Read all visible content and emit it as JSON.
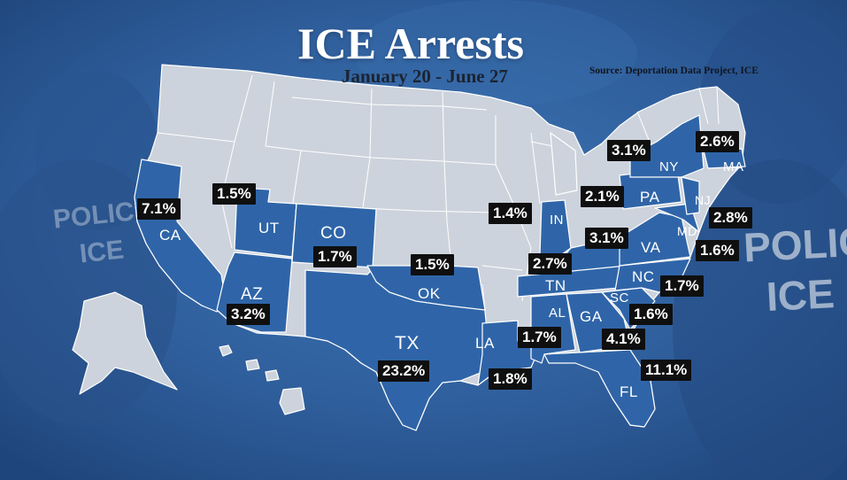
{
  "title": "ICE Arrests",
  "subtitle": "January 20 - June 27",
  "source": "Source: Deportation Data Project, ICE",
  "colors": {
    "highlight_state": "#2f65a8",
    "other_state": "#cdd3dc",
    "background": "#2f5f9c",
    "label_box": "#0f0f10"
  },
  "background_text": {
    "left_patch_1": "POLICE",
    "left_patch_2": "ICE",
    "right_patch_1": "POLICE",
    "right_patch_2": "ICE"
  },
  "states": [
    {
      "abbr": "CA",
      "share": "7.1%"
    },
    {
      "abbr": "UT",
      "share": "1.5%"
    },
    {
      "abbr": "AZ",
      "share": "3.2%"
    },
    {
      "abbr": "CO",
      "share": "1.7%"
    },
    {
      "abbr": "OK",
      "share": "1.5%"
    },
    {
      "abbr": "TX",
      "share": "23.2%"
    },
    {
      "abbr": "LA",
      "share": "1.8%"
    },
    {
      "abbr": "IN",
      "share": "1.4%"
    },
    {
      "abbr": "TN",
      "share": "2.7%"
    },
    {
      "abbr": "AL",
      "share": "1.7%"
    },
    {
      "abbr": "GA",
      "share": "4.1%"
    },
    {
      "abbr": "FL",
      "share": "11.1%"
    },
    {
      "abbr": "SC",
      "share": "1.6%"
    },
    {
      "abbr": "NC",
      "share": "1.7%"
    },
    {
      "abbr": "VA",
      "share": "3.1%"
    },
    {
      "abbr": "MD",
      "share": "1.6%"
    },
    {
      "abbr": "NJ",
      "share": "2.8%"
    },
    {
      "abbr": "PA",
      "share": "2.1%"
    },
    {
      "abbr": "NY",
      "share": "3.1%"
    },
    {
      "abbr": "MA",
      "share": "2.6%"
    }
  ]
}
